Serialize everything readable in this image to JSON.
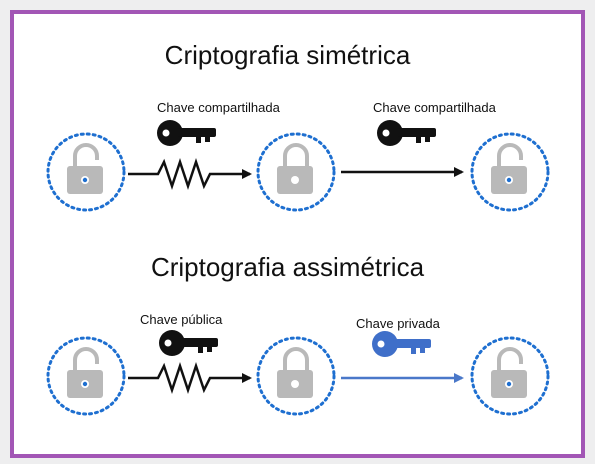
{
  "symmetric": {
    "title": "Criptografia simétrica",
    "key_label_1": "Chave compartilhada",
    "key_label_2": "Chave compartilhada"
  },
  "asymmetric": {
    "title": "Criptografia assimétrica",
    "key_label_1": "Chave pública",
    "key_label_2": "Chave privada"
  },
  "colors": {
    "frame": "#a256b5",
    "ring": "#1e6fd0",
    "lock": "#b9b9b9",
    "key_dark": "#111111",
    "key_private": "#3f6fc9",
    "arrow_private": "#4a78c9"
  },
  "icons": [
    "open-lock-icon",
    "closed-lock-icon",
    "key-icon",
    "private-key-icon",
    "resistor-icon",
    "arrow-icon"
  ]
}
